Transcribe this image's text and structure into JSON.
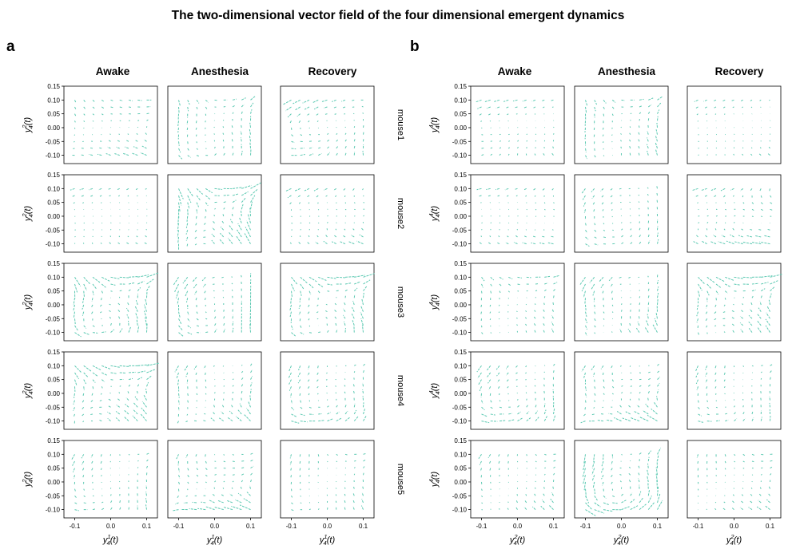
{
  "title": "The two-dimensional vector field of the four dimensional emergent dynamics",
  "colors": {
    "arrow": "#5cc9b2",
    "axis": "#000000"
  },
  "chart_data": [
    {
      "type": "quiver-grid",
      "panel": "a",
      "conditions": [
        "Awake",
        "Anesthesia",
        "Recovery"
      ],
      "mice": [
        "mouse1",
        "mouse2",
        "mouse3",
        "mouse4",
        "mouse5"
      ],
      "xlabel": "y_4^1(t)",
      "ylabel": "y_4^2(t)",
      "xticks": [
        "-0.1",
        "0.0",
        "0.1"
      ],
      "yticks": [
        "0.15",
        "0.10",
        "0.05",
        "0.00",
        "-0.05",
        "-0.10"
      ],
      "xlim": [
        -0.13,
        0.13
      ],
      "ylim": [
        -0.13,
        0.15
      ],
      "grid_points": [
        -0.1,
        -0.075,
        -0.05,
        -0.025,
        0.0,
        0.025,
        0.05,
        0.075,
        0.1
      ]
    },
    {
      "type": "quiver-grid",
      "panel": "b",
      "conditions": [
        "Awake",
        "Anesthesia",
        "Recovery"
      ],
      "mice": [
        "mouse1",
        "mouse2",
        "mouse3",
        "mouse4",
        "mouse5"
      ],
      "xlabel": "y_4^2(t)",
      "ylabel": "y_4^4(t)",
      "xticks": [
        "-0.1",
        "0.0",
        "0.1"
      ],
      "yticks": [
        "0.15",
        "0.10",
        "0.05",
        "0.00",
        "-0.05",
        "-0.10"
      ],
      "xlim": [
        -0.13,
        0.13
      ],
      "ylim": [
        -0.13,
        0.15
      ],
      "grid_points": [
        -0.1,
        -0.075,
        -0.05,
        -0.025,
        0.0,
        0.025,
        0.05,
        0.075,
        0.1
      ]
    }
  ]
}
